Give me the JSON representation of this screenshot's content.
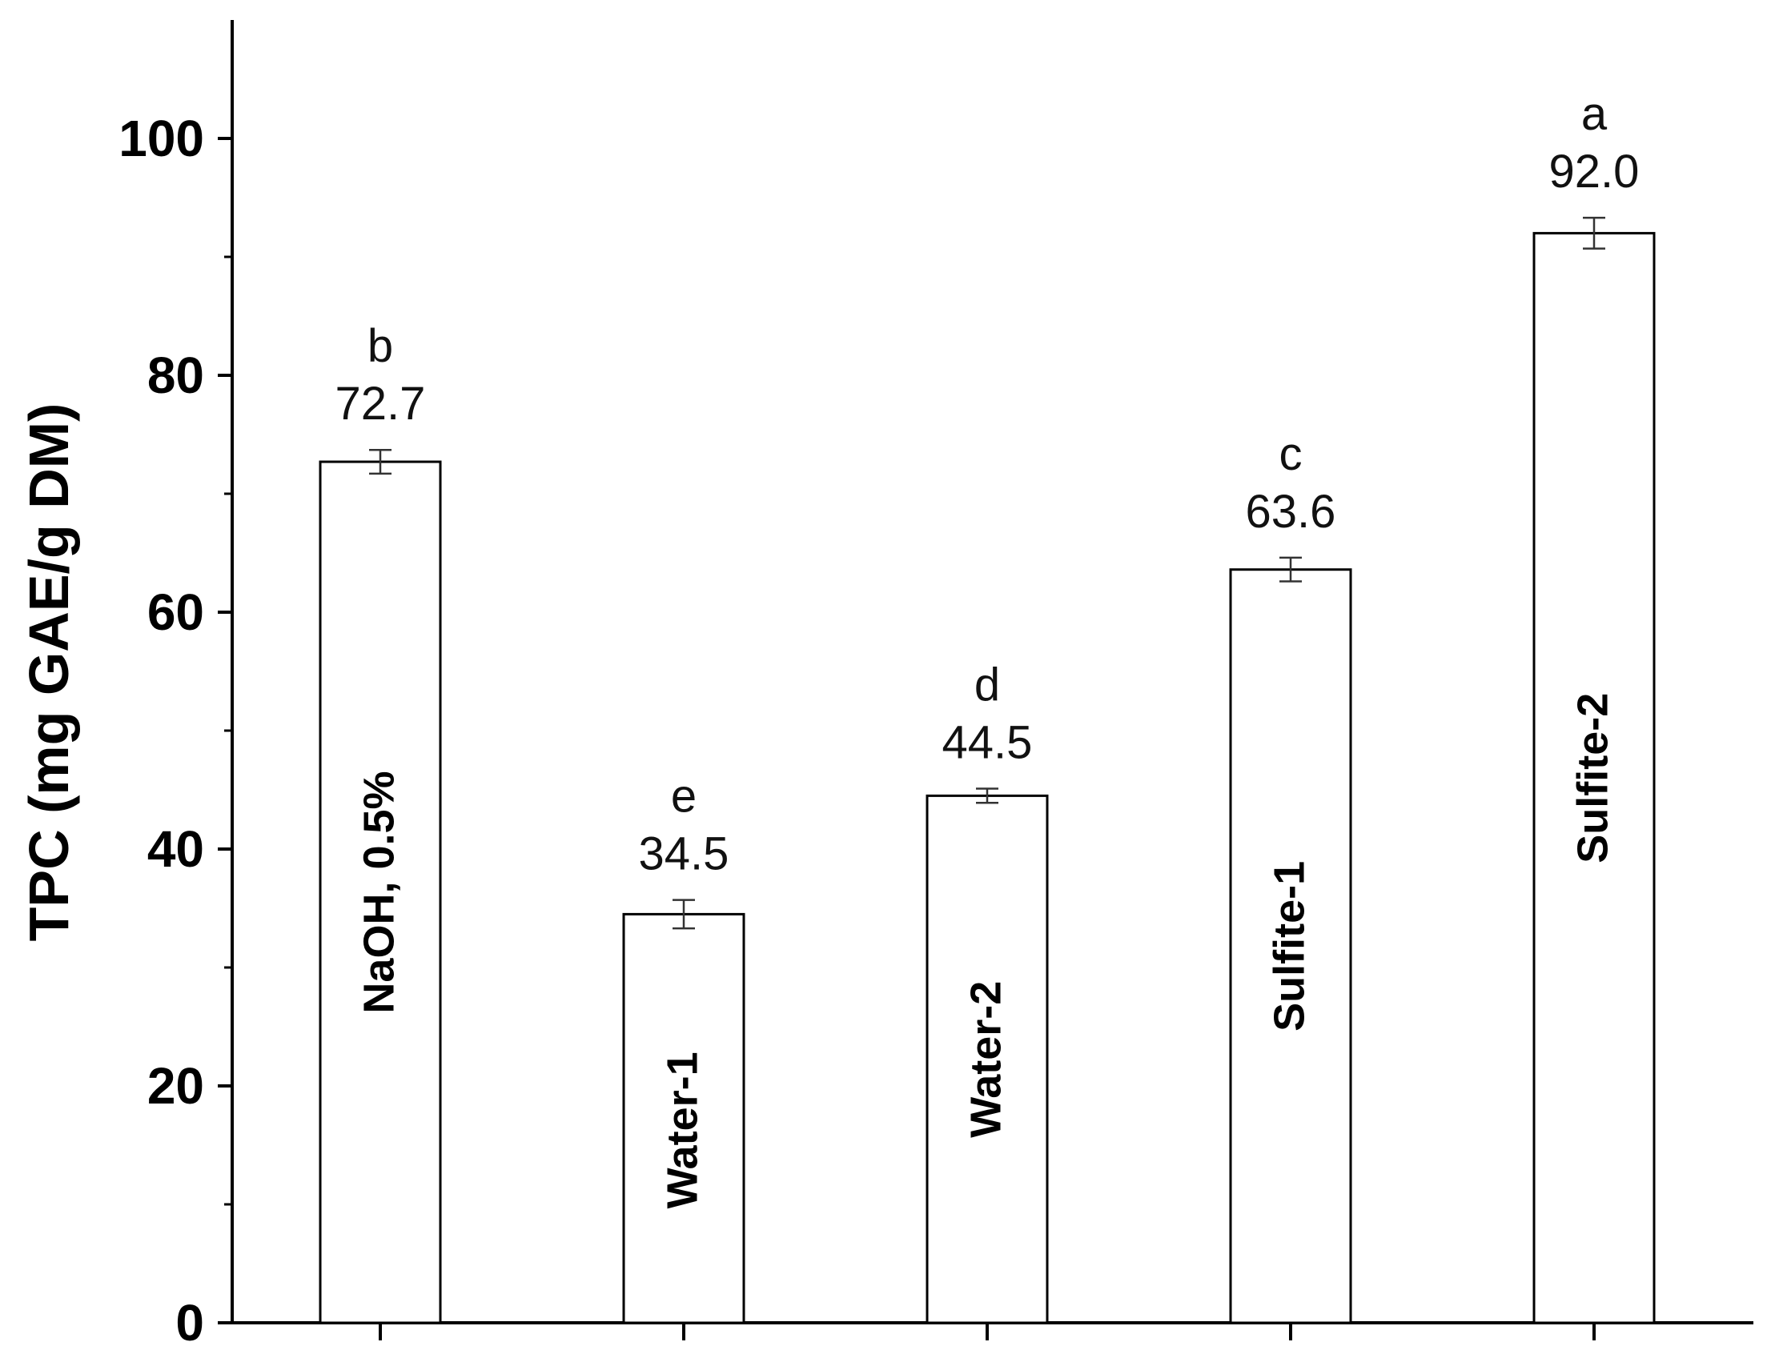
{
  "chart_data": {
    "type": "bar",
    "title": "",
    "xlabel": "",
    "ylabel": "TPC (mg GAE/g DM)",
    "ylim": [
      0,
      110
    ],
    "yticks": [
      0,
      20,
      40,
      60,
      80,
      100
    ],
    "grid": false,
    "legend": "none",
    "categories": [
      "NaOH, 0.5%",
      "Water-1",
      "Water-2",
      "Sulfite-1",
      "Sulfite-2"
    ],
    "values": [
      72.7,
      34.5,
      44.5,
      63.6,
      92.0
    ],
    "value_labels": [
      "72.7",
      "34.5",
      "44.5",
      "63.6",
      "92.0"
    ],
    "errors": [
      1.0,
      1.2,
      0.6,
      1.0,
      1.3
    ],
    "significance_letters": [
      "b",
      "e",
      "d",
      "c",
      "a"
    ],
    "colors": {
      "bar_fill": "#ffffff",
      "bar_stroke": "#000000",
      "axis": "#000000",
      "error": "#333333"
    }
  }
}
